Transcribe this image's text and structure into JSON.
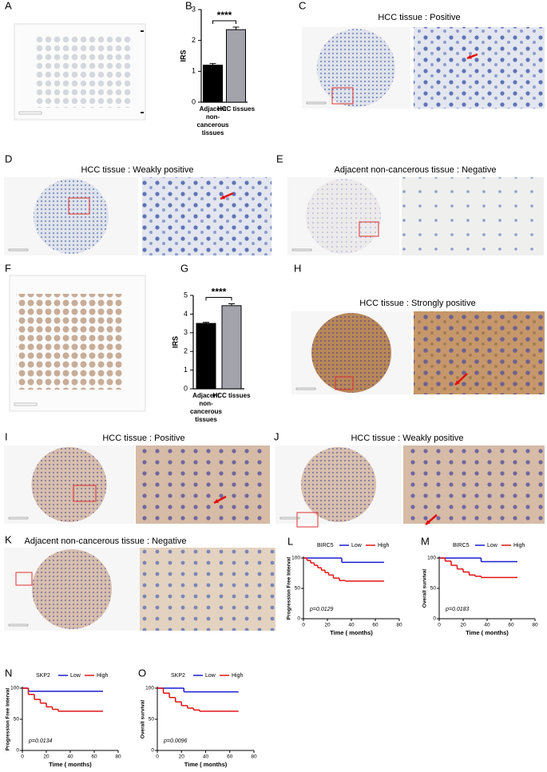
{
  "panel_letters": [
    "A",
    "B",
    "C",
    "D",
    "E",
    "F",
    "G",
    "H",
    "I",
    "J",
    "K",
    "L",
    "M",
    "N",
    "O"
  ],
  "image_titles": {
    "C": "HCC tissue : Positive",
    "D": "HCC tissue : Weakly positive",
    "E": "Adjacent non-cancerous tissue : Negative",
    "H": "HCC tissue : Strongly positive",
    "I": "HCC tissue : Positive",
    "J": "HCC tissue : Weakly positive",
    "K": "Adjacent non-cancerous tissue : Negative"
  },
  "chart_data": [
    {
      "type": "bar",
      "ylabel": "IRS",
      "categories": [
        "Adjacent non-cancerous tissues",
        "HCC tissues"
      ],
      "values": [
        1.2,
        2.35
      ],
      "errors": [
        0.05,
        0.08
      ],
      "colors": [
        "#000000",
        "#a3a3ab"
      ],
      "ylim": [
        0,
        3
      ],
      "yticks": [
        0,
        1,
        2,
        3
      ],
      "annotation": "****"
    },
    {
      "type": "bar",
      "ylabel": "IRS",
      "categories": [
        "Adjacent non-cancerous tissues",
        "HCC tissues"
      ],
      "values": [
        3.5,
        4.45
      ],
      "errors": [
        0.06,
        0.1
      ],
      "colors": [
        "#000000",
        "#a3a3ab"
      ],
      "ylim": [
        0,
        5
      ],
      "yticks": [
        0,
        1,
        2,
        3,
        4,
        5
      ],
      "annotation": "****"
    },
    {
      "type": "line",
      "legend_title": "BIRC5",
      "xlabel": "Time ( months)",
      "ylabel": "Progression Free Interval",
      "annotation": "p=0.0129",
      "xlim": [
        0,
        80
      ],
      "xticks": [
        0,
        20,
        40,
        60,
        80
      ],
      "ylim": [
        0,
        100
      ],
      "yticks": [
        0,
        50,
        100
      ],
      "series": [
        {
          "name": "Low",
          "color": "#1c1cd0",
          "x": [
            0,
            32,
            67
          ],
          "values": [
            100,
            93,
            93
          ]
        },
        {
          "name": "High",
          "color": "#e01414",
          "x": [
            0,
            3,
            6,
            9,
            12,
            15,
            18,
            21,
            25,
            30,
            35,
            67
          ],
          "values": [
            100,
            96,
            92,
            88,
            84,
            80,
            76,
            72,
            67,
            63,
            62,
            62
          ]
        }
      ]
    },
    {
      "type": "line",
      "legend_title": "BIRC5",
      "xlabel": "Time ( months)",
      "ylabel": "Overall survival",
      "annotation": "p=0.0183",
      "xlim": [
        0,
        80
      ],
      "xticks": [
        0,
        20,
        40,
        60,
        80
      ],
      "ylim": [
        0,
        100
      ],
      "yticks": [
        0,
        50,
        100
      ],
      "series": [
        {
          "name": "Low",
          "color": "#1c1cd0",
          "x": [
            0,
            35,
            65
          ],
          "values": [
            100,
            94,
            94
          ]
        },
        {
          "name": "High",
          "color": "#e01414",
          "x": [
            0,
            5,
            10,
            15,
            20,
            25,
            30,
            35,
            65
          ],
          "values": [
            100,
            95,
            88,
            82,
            77,
            72,
            70,
            68,
            68
          ]
        }
      ]
    },
    {
      "type": "line",
      "legend_title": "SKP2",
      "xlabel": "Time ( months)",
      "ylabel": "Progression Free Interval",
      "annotation": "p=0.0134",
      "xlim": [
        0,
        80
      ],
      "xticks": [
        0,
        20,
        40,
        60,
        80
      ],
      "ylim": [
        0,
        100
      ],
      "yticks": [
        0,
        50,
        100
      ],
      "series": [
        {
          "name": "Low",
          "color": "#1c1cd0",
          "x": [
            0,
            5,
            67
          ],
          "values": [
            100,
            95,
            95
          ]
        },
        {
          "name": "High",
          "color": "#e01414",
          "x": [
            0,
            5,
            10,
            15,
            20,
            25,
            30,
            67
          ],
          "values": [
            100,
            90,
            82,
            76,
            70,
            66,
            63,
            63
          ]
        }
      ]
    },
    {
      "type": "line",
      "legend_title": "SKP2",
      "xlabel": "Time ( months)",
      "ylabel": "Overall survival",
      "annotation": "p=0.0096",
      "xlim": [
        0,
        80
      ],
      "xticks": [
        0,
        20,
        40,
        60,
        80
      ],
      "ylim": [
        0,
        100
      ],
      "yticks": [
        0,
        50,
        100
      ],
      "series": [
        {
          "name": "Low",
          "color": "#1c1cd0",
          "x": [
            0,
            22,
            67
          ],
          "values": [
            100,
            94,
            94
          ]
        },
        {
          "name": "High",
          "color": "#e01414",
          "x": [
            0,
            5,
            10,
            15,
            20,
            25,
            30,
            35,
            67
          ],
          "values": [
            100,
            92,
            85,
            78,
            72,
            68,
            65,
            63,
            63
          ]
        }
      ]
    }
  ]
}
